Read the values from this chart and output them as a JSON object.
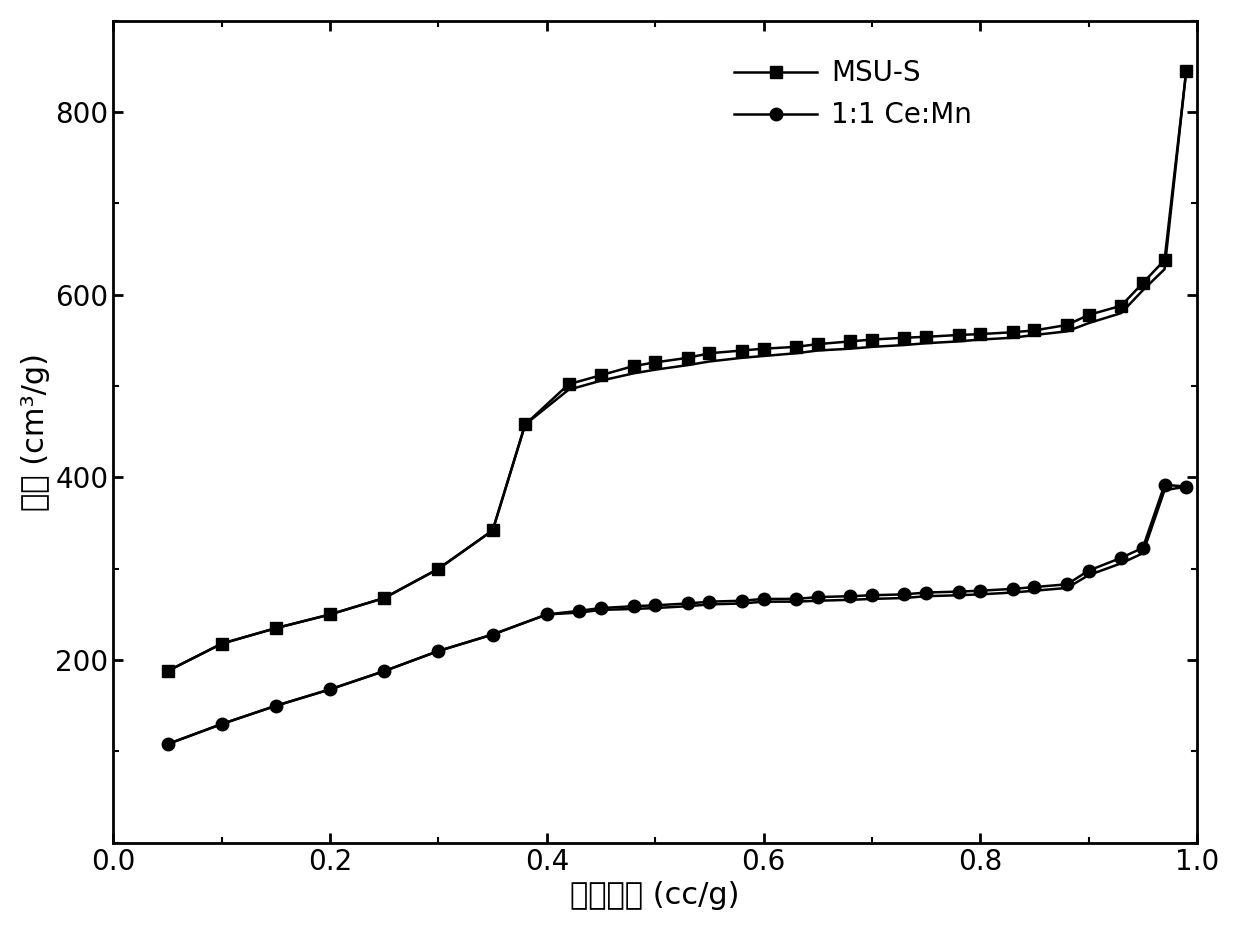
{
  "msu_s_ads_x": [
    0.05,
    0.1,
    0.15,
    0.2,
    0.25,
    0.3,
    0.35,
    0.38,
    0.42,
    0.45,
    0.48,
    0.5,
    0.53,
    0.55,
    0.58,
    0.6,
    0.63,
    0.65,
    0.68,
    0.7,
    0.73,
    0.75,
    0.78,
    0.8,
    0.83,
    0.85,
    0.88,
    0.9,
    0.93,
    0.95,
    0.97,
    0.99
  ],
  "msu_s_ads_y": [
    188,
    218,
    235,
    250,
    268,
    300,
    342,
    458,
    502,
    512,
    522,
    526,
    531,
    536,
    539,
    541,
    543,
    546,
    549,
    551,
    553,
    554,
    556,
    557,
    559,
    561,
    567,
    578,
    588,
    613,
    638,
    845
  ],
  "msu_s_des_x": [
    0.05,
    0.1,
    0.15,
    0.2,
    0.25,
    0.3,
    0.35,
    0.38,
    0.42,
    0.45,
    0.48,
    0.5,
    0.53,
    0.55,
    0.58,
    0.6,
    0.63,
    0.65,
    0.68,
    0.7,
    0.73,
    0.75,
    0.78,
    0.8,
    0.83,
    0.85,
    0.88,
    0.9,
    0.93,
    0.95,
    0.97,
    0.99
  ],
  "msu_s_des_y": [
    188,
    218,
    235,
    250,
    268,
    300,
    342,
    458,
    496,
    506,
    514,
    518,
    523,
    527,
    531,
    533,
    536,
    539,
    541,
    543,
    545,
    547,
    549,
    551,
    553,
    556,
    560,
    569,
    580,
    605,
    628,
    845
  ],
  "ce_mn_ads_x": [
    0.05,
    0.1,
    0.15,
    0.2,
    0.25,
    0.3,
    0.35,
    0.4,
    0.43,
    0.45,
    0.48,
    0.5,
    0.53,
    0.55,
    0.58,
    0.6,
    0.63,
    0.65,
    0.68,
    0.7,
    0.73,
    0.75,
    0.78,
    0.8,
    0.83,
    0.85,
    0.88,
    0.9,
    0.93,
    0.95,
    0.97,
    0.99
  ],
  "ce_mn_ads_y": [
    108,
    130,
    150,
    168,
    188,
    210,
    228,
    250,
    254,
    257,
    259,
    260,
    262,
    264,
    265,
    267,
    267,
    269,
    270,
    271,
    272,
    274,
    275,
    276,
    278,
    280,
    283,
    298,
    312,
    323,
    392,
    390
  ],
  "ce_mn_des_x": [
    0.05,
    0.1,
    0.15,
    0.2,
    0.25,
    0.3,
    0.35,
    0.4,
    0.43,
    0.45,
    0.48,
    0.5,
    0.53,
    0.55,
    0.58,
    0.6,
    0.63,
    0.65,
    0.68,
    0.7,
    0.73,
    0.75,
    0.78,
    0.8,
    0.83,
    0.85,
    0.88,
    0.9,
    0.93,
    0.95,
    0.97,
    0.99
  ],
  "ce_mn_des_y": [
    108,
    130,
    150,
    168,
    188,
    210,
    228,
    250,
    252,
    255,
    256,
    257,
    259,
    261,
    262,
    264,
    264,
    265,
    266,
    267,
    268,
    270,
    271,
    272,
    274,
    276,
    279,
    293,
    306,
    317,
    386,
    390
  ],
  "xlabel": "相对压力 (cc/g)",
  "ylabel": "体积 (cm³/g)",
  "xlim": [
    0.0,
    1.0
  ],
  "ylim": [
    0,
    900
  ],
  "yticks": [
    200,
    400,
    600,
    800
  ],
  "xticks": [
    0.0,
    0.2,
    0.4,
    0.6,
    0.8,
    1.0
  ],
  "label_msu": "MSU-S",
  "label_cemn": "1:1 Ce:Mn",
  "line_color": "#000000",
  "bg_color": "#ffffff",
  "marker_square": "s",
  "marker_circle": "o",
  "markersize": 9,
  "linewidth": 1.8,
  "xlabel_fontsize": 22,
  "ylabel_fontsize": 22,
  "tick_fontsize": 20,
  "legend_fontsize": 20
}
